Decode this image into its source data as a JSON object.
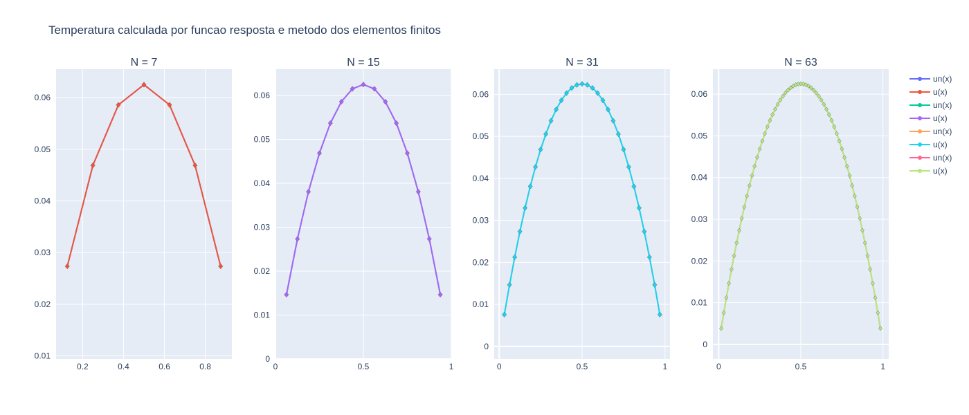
{
  "title": "Temperatura calculada por funcao resposta e metodo dos elementos finitos",
  "legend": [
    {
      "label": "un(x)",
      "color": "#636efa"
    },
    {
      "label": "u(x)",
      "color": "#ef553b"
    },
    {
      "label": "un(x)",
      "color": "#00cc96"
    },
    {
      "label": "u(x)",
      "color": "#ab63fa"
    },
    {
      "label": "un(x)",
      "color": "#ffa15a"
    },
    {
      "label": "u(x)",
      "color": "#19d3f3"
    },
    {
      "label": "un(x)",
      "color": "#ff6692"
    },
    {
      "label": "u(x)",
      "color": "#b6e880"
    }
  ],
  "chart_data": [
    {
      "type": "line",
      "title": "N = 7",
      "N": 7,
      "xlim": [
        0.07,
        0.93
      ],
      "ylim": [
        0.0094,
        0.0655
      ],
      "xticks": [
        0.2,
        0.4,
        0.6,
        0.8
      ],
      "xticklabels": [
        "0.2",
        "0.4",
        "0.6",
        "0.8"
      ],
      "yticks": [
        0.01,
        0.02,
        0.03,
        0.04,
        0.05,
        0.06
      ],
      "yticklabels": [
        "0.01",
        "0.02",
        "0.03",
        "0.04",
        "0.05",
        "0.06"
      ],
      "series": [
        {
          "name": "un(x)",
          "color": "#636efa"
        },
        {
          "name": "u(x)",
          "color": "#ef553b"
        }
      ]
    },
    {
      "type": "line",
      "title": "N = 15",
      "N": 15,
      "xlim": [
        0,
        1
      ],
      "ylim": [
        0,
        0.066
      ],
      "xticks": [
        0,
        0.5,
        1
      ],
      "xticklabels": [
        "0",
        "0.5",
        "1"
      ],
      "yticks": [
        0,
        0.01,
        0.02,
        0.03,
        0.04,
        0.05,
        0.06
      ],
      "yticklabels": [
        "0",
        "0.01",
        "0.02",
        "0.03",
        "0.04",
        "0.05",
        "0.06"
      ],
      "series": [
        {
          "name": "un(x)",
          "color": "#00cc96"
        },
        {
          "name": "u(x)",
          "color": "#ab63fa"
        }
      ]
    },
    {
      "type": "line",
      "title": "N = 31",
      "N": 31,
      "xlim": [
        -0.03,
        1.03
      ],
      "ylim": [
        -0.003,
        0.066
      ],
      "xticks": [
        0,
        0.5,
        1
      ],
      "xticklabels": [
        "0",
        "0.5",
        "1"
      ],
      "yticks": [
        0,
        0.01,
        0.02,
        0.03,
        0.04,
        0.05,
        0.06
      ],
      "yticklabels": [
        "0",
        "0.01",
        "0.02",
        "0.03",
        "0.04",
        "0.05",
        "0.06"
      ],
      "series": [
        {
          "name": "un(x)",
          "color": "#ffa15a"
        },
        {
          "name": "u(x)",
          "color": "#19d3f3"
        }
      ]
    },
    {
      "type": "line",
      "title": "N = 63",
      "N": 63,
      "xlim": [
        -0.035,
        1.035
      ],
      "ylim": [
        -0.0035,
        0.066
      ],
      "xticks": [
        0,
        0.5,
        1
      ],
      "xticklabels": [
        "0",
        "0.5",
        "1"
      ],
      "yticks": [
        0,
        0.01,
        0.02,
        0.03,
        0.04,
        0.05,
        0.06
      ],
      "yticklabels": [
        "0",
        "0.01",
        "0.02",
        "0.03",
        "0.04",
        "0.05",
        "0.06"
      ],
      "series": [
        {
          "name": "un(x)",
          "color": "#ff6692"
        },
        {
          "name": "u(x)",
          "color": "#b6e880"
        }
      ]
    }
  ]
}
